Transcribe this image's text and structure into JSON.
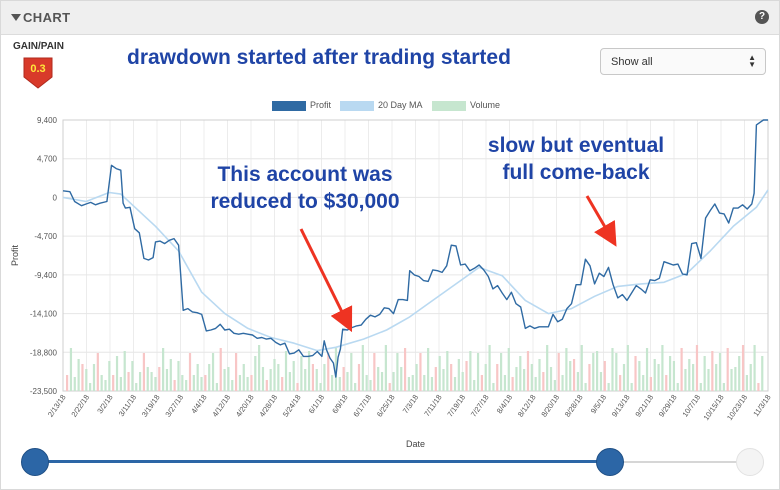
{
  "panel": {
    "title": "CHART"
  },
  "gain_pain": {
    "label": "GAIN/PAIN",
    "value": "0.3",
    "badge_color": "#d83a2a"
  },
  "headline": "drawdown started after trading started",
  "select": {
    "value": "Show all"
  },
  "legend": [
    {
      "label": "Profit",
      "color": "#2f6aa3"
    },
    {
      "label": "20 Day MA",
      "color": "#b9d9f1"
    },
    {
      "label": "Volume",
      "color": "#c6e6cf"
    }
  ],
  "annotations": {
    "left_line1": "This account was",
    "left_line2": "reduced to $30,000",
    "right_line1": "slow but eventual",
    "right_line2": "full come-back",
    "arrow_color": "#ee3322"
  },
  "chart_data": {
    "type": "line",
    "xlabel": "Date",
    "ylabel": "Profit",
    "ylim": [
      -23500,
      9400
    ],
    "yticks": [
      9400,
      4700,
      0,
      -4700,
      -9400,
      -14100,
      -18800,
      -23500
    ],
    "ytick_labels": [
      "9,400",
      "4,700",
      "0",
      "-4,700",
      "-9,400",
      "-14,100",
      "-18,800",
      "-23,500"
    ],
    "x_tick_labels": [
      "2/13/18",
      "2/22/18",
      "3/2/18",
      "3/11/18",
      "3/19/18",
      "3/27/18",
      "4/4/18",
      "4/12/18",
      "4/20/18",
      "4/28/18",
      "5/24/18",
      "6/1/18",
      "6/9/18",
      "6/17/18",
      "6/25/18",
      "7/3/18",
      "7/11/18",
      "7/19/18",
      "7/27/18",
      "8/4/18",
      "8/12/18",
      "8/20/18",
      "8/28/18",
      "9/5/18",
      "9/13/18",
      "9/21/18",
      "9/29/18",
      "10/7/18",
      "10/15/18",
      "10/23/18",
      "11/3/18"
    ],
    "grid": true,
    "legend_position": "top",
    "series": [
      {
        "name": "Profit",
        "color": "#2f6aa3",
        "points": [
          [
            0,
            800
          ],
          [
            0.3,
            700
          ],
          [
            0.5,
            -500
          ],
          [
            0.8,
            -1000
          ],
          [
            1,
            -800
          ],
          [
            1.2,
            -600
          ],
          [
            1.4,
            -900
          ],
          [
            1.6,
            -700
          ],
          [
            1.9,
            -500
          ],
          [
            2.1,
            3900
          ],
          [
            2.3,
            3500
          ],
          [
            2.5,
            3300
          ],
          [
            2.6,
            -700
          ],
          [
            2.7,
            -1300
          ],
          [
            2.9,
            -1200
          ],
          [
            3.1,
            -3800
          ],
          [
            3.3,
            -4300
          ],
          [
            3.5,
            -7400
          ],
          [
            3.7,
            -7600
          ],
          [
            3.9,
            -7300
          ],
          [
            4,
            -5400
          ],
          [
            4.2,
            -5300
          ],
          [
            4.4,
            -5600
          ],
          [
            4.6,
            -5200
          ],
          [
            4.8,
            -5000
          ],
          [
            5,
            -5800
          ],
          [
            5.2,
            -13700
          ],
          [
            5.4,
            -13500
          ],
          [
            5.6,
            -13900
          ],
          [
            5.8,
            -14000
          ],
          [
            6,
            -14200
          ],
          [
            6.2,
            -16200
          ],
          [
            6.4,
            -16100
          ],
          [
            6.6,
            -15900
          ],
          [
            6.8,
            -15400
          ],
          [
            7,
            -16100
          ],
          [
            7.2,
            -16000
          ],
          [
            7.4,
            -16500
          ],
          [
            7.6,
            -16600
          ],
          [
            7.8,
            -16500
          ],
          [
            8,
            -16600
          ],
          [
            8.2,
            -16700
          ],
          [
            8.4,
            -17100
          ],
          [
            8.6,
            -17000
          ],
          [
            8.8,
            -17200
          ],
          [
            9,
            -17100
          ],
          [
            9.2,
            -17600
          ],
          [
            9.4,
            -17900
          ],
          [
            9.6,
            -17700
          ],
          [
            9.8,
            -19000
          ],
          [
            10,
            -18900
          ],
          [
            10.2,
            -18500
          ],
          [
            10.4,
            -19300
          ],
          [
            10.6,
            -19300
          ],
          [
            10.8,
            -19200
          ],
          [
            11,
            -18700
          ],
          [
            11.2,
            -19300
          ],
          [
            11.3,
            -17400
          ],
          [
            11.4,
            -18500
          ],
          [
            11.55,
            -19500
          ],
          [
            11.7,
            -20100
          ],
          [
            11.8,
            -21800
          ],
          [
            11.9,
            -19400
          ],
          [
            12,
            -18400
          ],
          [
            12.1,
            -16000
          ],
          [
            12.3,
            -16100
          ],
          [
            12.5,
            -15800
          ],
          [
            12.7,
            -15600
          ],
          [
            12.9,
            -15500
          ],
          [
            13.1,
            -14800
          ],
          [
            13.3,
            -14300
          ],
          [
            13.5,
            -14500
          ],
          [
            13.7,
            -14200
          ],
          [
            13.9,
            -13400
          ],
          [
            14.1,
            -13500
          ],
          [
            14.3,
            -14100
          ],
          [
            14.5,
            -12400
          ],
          [
            14.7,
            -12400
          ],
          [
            14.9,
            -12500
          ],
          [
            15,
            -8900
          ],
          [
            15.2,
            -9400
          ],
          [
            15.4,
            -9600
          ],
          [
            15.6,
            -10100
          ],
          [
            15.8,
            -10200
          ],
          [
            16,
            -8800
          ],
          [
            16.2,
            -8900
          ],
          [
            16.4,
            -9100
          ],
          [
            16.6,
            -8300
          ],
          [
            16.8,
            -5800
          ],
          [
            17,
            -5900
          ],
          [
            17.2,
            -8200
          ],
          [
            17.4,
            -8100
          ],
          [
            17.6,
            -8900
          ],
          [
            17.8,
            -8600
          ],
          [
            18,
            -8200
          ],
          [
            18.2,
            -8800
          ],
          [
            18.4,
            -9600
          ],
          [
            18.6,
            -11100
          ],
          [
            18.8,
            -10700
          ],
          [
            19,
            -11600
          ],
          [
            19.2,
            -12400
          ],
          [
            19.4,
            -11500
          ],
          [
            19.6,
            -12900
          ],
          [
            19.8,
            -13300
          ],
          [
            20,
            -15900
          ],
          [
            20.2,
            -15600
          ],
          [
            20.4,
            -15900
          ],
          [
            20.6,
            -15700
          ],
          [
            20.8,
            -15700
          ],
          [
            21,
            -15700
          ],
          [
            21.2,
            -14200
          ],
          [
            21.4,
            -15100
          ],
          [
            21.6,
            -14800
          ],
          [
            21.8,
            -13500
          ],
          [
            22,
            -12900
          ],
          [
            22.2,
            -10600
          ],
          [
            22.4,
            -10600
          ],
          [
            22.6,
            -7500
          ],
          [
            22.8,
            -8300
          ],
          [
            23,
            -10500
          ],
          [
            23.2,
            -9200
          ],
          [
            23.4,
            -9600
          ],
          [
            23.6,
            -8500
          ],
          [
            23.8,
            -10600
          ],
          [
            24,
            -12200
          ],
          [
            24.2,
            -11800
          ],
          [
            24.4,
            -12500
          ],
          [
            24.6,
            -11600
          ],
          [
            24.8,
            -10700
          ],
          [
            25,
            -11100
          ],
          [
            25.2,
            -11600
          ],
          [
            25.4,
            -10000
          ],
          [
            25.6,
            -10100
          ],
          [
            25.8,
            -9800
          ],
          [
            26,
            -7800
          ],
          [
            26.2,
            -8000
          ],
          [
            26.4,
            -8200
          ],
          [
            26.6,
            -8100
          ],
          [
            26.8,
            -9300
          ],
          [
            27,
            -9400
          ],
          [
            27.2,
            -5600
          ],
          [
            27.4,
            -5500
          ],
          [
            27.6,
            -7400
          ],
          [
            27.8,
            -2500
          ],
          [
            28,
            -1600
          ],
          [
            28.2,
            -800
          ],
          [
            28.4,
            -1900
          ],
          [
            28.6,
            -2000
          ],
          [
            28.8,
            -3100
          ],
          [
            29,
            -1300
          ],
          [
            29.2,
            -1300
          ],
          [
            29.4,
            -900
          ],
          [
            29.6,
            -1400
          ],
          [
            29.8,
            -800
          ],
          [
            29.9,
            500
          ],
          [
            30,
            8800
          ],
          [
            30.3,
            9400
          ],
          [
            30.5,
            9400
          ]
        ]
      },
      {
        "name": "20 Day MA",
        "color": "#b9d9f1",
        "points": [
          [
            0,
            0
          ],
          [
            1,
            -500
          ],
          [
            2,
            600
          ],
          [
            2.5,
            400
          ],
          [
            3,
            -900
          ],
          [
            4,
            -3500
          ],
          [
            5,
            -6500
          ],
          [
            6,
            -11500
          ],
          [
            7,
            -14100
          ],
          [
            8,
            -15900
          ],
          [
            9,
            -17000
          ],
          [
            10,
            -17700
          ],
          [
            11,
            -18600
          ],
          [
            11.8,
            -18200
          ],
          [
            13,
            -17200
          ],
          [
            14,
            -16100
          ],
          [
            15,
            -14500
          ],
          [
            16,
            -12500
          ],
          [
            17,
            -10500
          ],
          [
            18,
            -8500
          ],
          [
            19,
            -9500
          ],
          [
            20,
            -12500
          ],
          [
            21,
            -14100
          ],
          [
            22,
            -13500
          ],
          [
            23,
            -12000
          ],
          [
            24,
            -10800
          ],
          [
            25,
            -10500
          ],
          [
            26,
            -10300
          ],
          [
            27,
            -9200
          ],
          [
            28,
            -6500
          ],
          [
            29,
            -3500
          ],
          [
            30,
            -1200
          ],
          [
            30.5,
            900
          ]
        ]
      },
      {
        "name": "Volume",
        "color": "#c6e6cf",
        "secondary_color": "#f8c6c6",
        "values": [
          2,
          5,
          1,
          4,
          3,
          2,
          1,
          3,
          4,
          2,
          1,
          3,
          2,
          4,
          1,
          5,
          2,
          3,
          1,
          2,
          4,
          3,
          2,
          1,
          3,
          5,
          2,
          4,
          1,
          3,
          2,
          1,
          4,
          2,
          3,
          1,
          2,
          3,
          4,
          1,
          5,
          2,
          3,
          1,
          4,
          2,
          3,
          1,
          2,
          4,
          5,
          3,
          1,
          2,
          4,
          3,
          1,
          5,
          2,
          3,
          1,
          4,
          2,
          5,
          3,
          2,
          1,
          3,
          4,
          2,
          5,
          1,
          3,
          2,
          4,
          1,
          3,
          5,
          2,
          1,
          4,
          3,
          2,
          5,
          1,
          2,
          4,
          3,
          5,
          1,
          2,
          3,
          4,
          2,
          5,
          1,
          3,
          4,
          2,
          5,
          3,
          1,
          4,
          2,
          3,
          5,
          1,
          4,
          2,
          3,
          5,
          1,
          3,
          4,
          2,
          5,
          1,
          3,
          4,
          2,
          5,
          3,
          1,
          4,
          2,
          5,
          3,
          1,
          4,
          2,
          5,
          3,
          4,
          2,
          5,
          1,
          3,
          4,
          5,
          2,
          3,
          1,
          5,
          4,
          2,
          3,
          5,
          1,
          4,
          3,
          2,
          5,
          1,
          4,
          3,
          5,
          2,
          4,
          3,
          1,
          5,
          2,
          4,
          3,
          5,
          1,
          4,
          2,
          5,
          3,
          4,
          1,
          5,
          2,
          3,
          4,
          5,
          2,
          3,
          5,
          1,
          4
        ]
      }
    ]
  }
}
